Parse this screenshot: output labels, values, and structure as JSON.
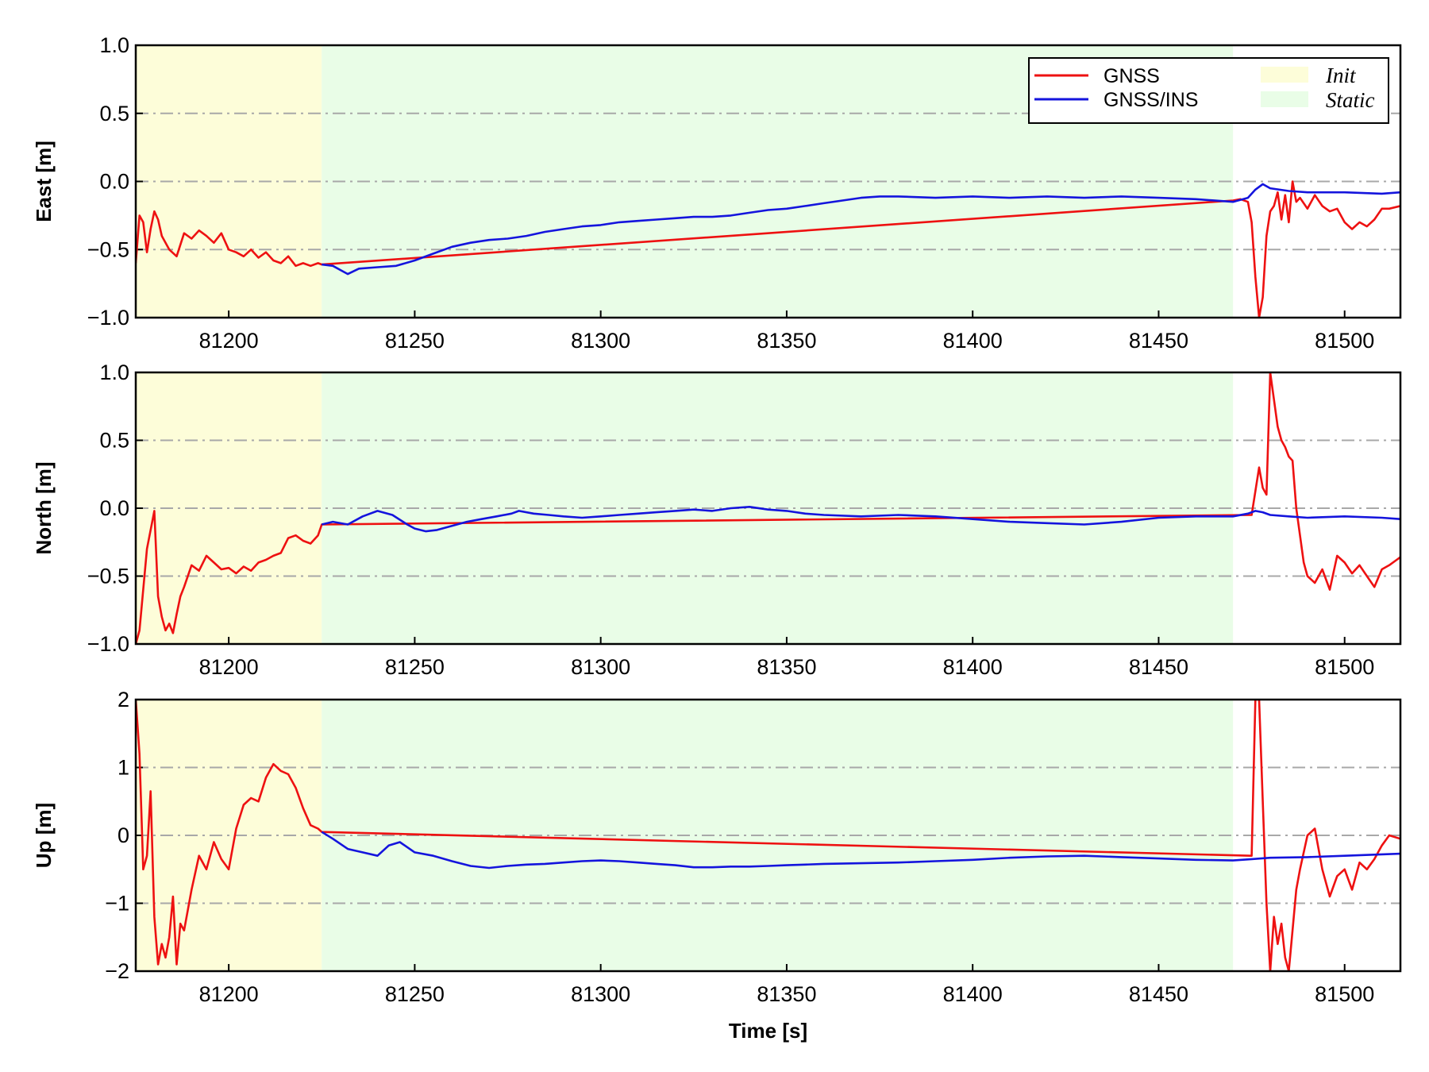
{
  "chart_data": [
    {
      "type": "line",
      "ylabel": "East [m]",
      "xlabel": "",
      "xlim": [
        81175,
        81515
      ],
      "ylim": [
        -1.0,
        1.0
      ],
      "xticks": [
        "81200",
        "81250",
        "81300",
        "81350",
        "81400",
        "81450",
        "81500"
      ],
      "yticks": [
        "−1.0",
        "−0.5",
        "0.0",
        "0.5",
        "1.0"
      ],
      "grid": "horizontal dash-dot",
      "legend": "top-right",
      "regions": [
        {
          "name": "Init",
          "x": [
            81175,
            81225
          ],
          "color": "#fdfdd9"
        },
        {
          "name": "Static",
          "x": [
            81225,
            81470
          ],
          "color": "#e9fde7"
        }
      ],
      "series": [
        {
          "name": "GNSS",
          "color": "#ee1111",
          "x": [
            81175,
            81176,
            81177,
            81178,
            81179,
            81180,
            81181,
            81182,
            81184,
            81186,
            81188,
            81190,
            81192,
            81194,
            81196,
            81198,
            81200,
            81202,
            81204,
            81206,
            81208,
            81210,
            81212,
            81214,
            81216,
            81218,
            81220,
            81222,
            81224,
            81225,
            81470,
            81472,
            81474,
            81475,
            81476,
            81477,
            81478,
            81479,
            81480,
            81481,
            81482,
            81483,
            81484,
            81485,
            81486,
            81487,
            81488,
            81490,
            81492,
            81494,
            81496,
            81498,
            81500,
            81502,
            81504,
            81506,
            81508,
            81510,
            81512,
            81515
          ],
          "y": [
            -0.6,
            -0.25,
            -0.3,
            -0.52,
            -0.35,
            -0.22,
            -0.28,
            -0.4,
            -0.5,
            -0.55,
            -0.38,
            -0.42,
            -0.36,
            -0.4,
            -0.45,
            -0.38,
            -0.5,
            -0.52,
            -0.55,
            -0.5,
            -0.56,
            -0.52,
            -0.58,
            -0.6,
            -0.55,
            -0.62,
            -0.6,
            -0.62,
            -0.6,
            -0.61,
            -0.14,
            -0.13,
            -0.15,
            -0.3,
            -0.7,
            -1.0,
            -0.85,
            -0.4,
            -0.22,
            -0.18,
            -0.08,
            -0.28,
            -0.1,
            -0.3,
            0.0,
            -0.15,
            -0.12,
            -0.2,
            -0.1,
            -0.18,
            -0.22,
            -0.2,
            -0.3,
            -0.35,
            -0.3,
            -0.33,
            -0.28,
            -0.2,
            -0.2,
            -0.18
          ]
        },
        {
          "name": "GNSS/INS",
          "color": "#1414dd",
          "x": [
            81225,
            81228,
            81230,
            81232,
            81235,
            81240,
            81245,
            81250,
            81255,
            81260,
            81265,
            81270,
            81275,
            81280,
            81285,
            81290,
            81295,
            81300,
            81305,
            81310,
            81315,
            81320,
            81325,
            81330,
            81335,
            81340,
            81345,
            81350,
            81355,
            81360,
            81365,
            81370,
            81375,
            81380,
            81390,
            81400,
            81410,
            81420,
            81430,
            81440,
            81450,
            81460,
            81470,
            81474,
            81476,
            81478,
            81480,
            81485,
            81490,
            81500,
            81510,
            81515
          ],
          "y": [
            -0.61,
            -0.62,
            -0.65,
            -0.68,
            -0.64,
            -0.63,
            -0.62,
            -0.58,
            -0.53,
            -0.48,
            -0.45,
            -0.43,
            -0.42,
            -0.4,
            -0.37,
            -0.35,
            -0.33,
            -0.32,
            -0.3,
            -0.29,
            -0.28,
            -0.27,
            -0.26,
            -0.26,
            -0.25,
            -0.23,
            -0.21,
            -0.2,
            -0.18,
            -0.16,
            -0.14,
            -0.12,
            -0.11,
            -0.11,
            -0.12,
            -0.11,
            -0.12,
            -0.11,
            -0.12,
            -0.11,
            -0.12,
            -0.13,
            -0.15,
            -0.12,
            -0.06,
            -0.02,
            -0.05,
            -0.07,
            -0.08,
            -0.08,
            -0.09,
            -0.08
          ]
        }
      ]
    },
    {
      "type": "line",
      "ylabel": "North [m]",
      "xlabel": "",
      "xlim": [
        81175,
        81515
      ],
      "ylim": [
        -1.0,
        1.0
      ],
      "xticks": [
        "81200",
        "81250",
        "81300",
        "81350",
        "81400",
        "81450",
        "81500"
      ],
      "yticks": [
        "−1.0",
        "−0.5",
        "0.0",
        "0.5",
        "1.0"
      ],
      "grid": "horizontal dash-dot",
      "regions": [
        {
          "name": "Init",
          "x": [
            81175,
            81225
          ],
          "color": "#fdfdd9"
        },
        {
          "name": "Static",
          "x": [
            81225,
            81470
          ],
          "color": "#e9fde7"
        }
      ],
      "series": [
        {
          "name": "GNSS",
          "color": "#ee1111",
          "x": [
            81175,
            81176,
            81178,
            81180,
            81181,
            81182,
            81183,
            81184,
            81185,
            81186,
            81187,
            81188,
            81190,
            81192,
            81194,
            81196,
            81198,
            81200,
            81202,
            81204,
            81206,
            81208,
            81210,
            81212,
            81214,
            81216,
            81218,
            81220,
            81222,
            81224,
            81225,
            81475,
            81477,
            81478,
            81479,
            81480,
            81481,
            81482,
            81483,
            81484,
            81485,
            81486,
            81487,
            81488,
            81489,
            81490,
            81492,
            81494,
            81496,
            81498,
            81500,
            81502,
            81504,
            81506,
            81508,
            81510,
            81512,
            81514,
            81515
          ],
          "y": [
            -1.0,
            -0.9,
            -0.3,
            -0.02,
            -0.65,
            -0.8,
            -0.9,
            -0.85,
            -0.92,
            -0.78,
            -0.65,
            -0.58,
            -0.42,
            -0.46,
            -0.35,
            -0.4,
            -0.45,
            -0.44,
            -0.48,
            -0.43,
            -0.46,
            -0.4,
            -0.38,
            -0.35,
            -0.33,
            -0.22,
            -0.2,
            -0.24,
            -0.26,
            -0.2,
            -0.12,
            -0.05,
            0.3,
            0.15,
            0.1,
            1.0,
            0.8,
            0.6,
            0.5,
            0.45,
            0.38,
            0.35,
            0.0,
            -0.2,
            -0.4,
            -0.5,
            -0.55,
            -0.45,
            -0.6,
            -0.35,
            -0.4,
            -0.48,
            -0.42,
            -0.5,
            -0.58,
            -0.45,
            -0.42,
            -0.38,
            -0.36
          ]
        },
        {
          "name": "GNSS/INS",
          "color": "#1414dd",
          "x": [
            81225,
            81228,
            81232,
            81236,
            81240,
            81244,
            81248,
            81250,
            81253,
            81256,
            81260,
            81264,
            81268,
            81272,
            81276,
            81278,
            81282,
            81286,
            81290,
            81295,
            81300,
            81305,
            81310,
            81315,
            81320,
            81325,
            81330,
            81335,
            81340,
            81345,
            81350,
            81355,
            81360,
            81370,
            81380,
            81390,
            81400,
            81410,
            81420,
            81430,
            81440,
            81450,
            81460,
            81470,
            81474,
            81476,
            81478,
            81480,
            81485,
            81490,
            81500,
            81510,
            81515
          ],
          "y": [
            -0.12,
            -0.1,
            -0.12,
            -0.06,
            -0.02,
            -0.05,
            -0.12,
            -0.15,
            -0.17,
            -0.16,
            -0.13,
            -0.1,
            -0.08,
            -0.06,
            -0.04,
            -0.02,
            -0.04,
            -0.05,
            -0.06,
            -0.07,
            -0.06,
            -0.05,
            -0.04,
            -0.03,
            -0.02,
            -0.01,
            -0.02,
            0.0,
            0.01,
            -0.01,
            -0.02,
            -0.04,
            -0.05,
            -0.06,
            -0.05,
            -0.06,
            -0.08,
            -0.1,
            -0.11,
            -0.12,
            -0.1,
            -0.07,
            -0.06,
            -0.06,
            -0.04,
            -0.02,
            -0.03,
            -0.05,
            -0.06,
            -0.07,
            -0.06,
            -0.07,
            -0.08
          ]
        }
      ]
    },
    {
      "type": "line",
      "ylabel": "Up [m]",
      "xlabel": "Time [s]",
      "xlim": [
        81175,
        81515
      ],
      "ylim": [
        -2,
        2
      ],
      "xticks": [
        "81200",
        "81250",
        "81300",
        "81350",
        "81400",
        "81450",
        "81500"
      ],
      "yticks": [
        "−2",
        "−1",
        "0",
        "1",
        "2"
      ],
      "grid": "horizontal dash-dot",
      "regions": [
        {
          "name": "Init",
          "x": [
            81175,
            81225
          ],
          "color": "#fdfdd9"
        },
        {
          "name": "Static",
          "x": [
            81225,
            81470
          ],
          "color": "#e9fde7"
        }
      ],
      "series": [
        {
          "name": "GNSS",
          "color": "#ee1111",
          "x": [
            81175,
            81176,
            81177,
            81178,
            81179,
            81180,
            81181,
            81182,
            81183,
            81184,
            81185,
            81186,
            81187,
            81188,
            81189,
            81190,
            81192,
            81194,
            81196,
            81198,
            81200,
            81202,
            81204,
            81206,
            81208,
            81210,
            81212,
            81214,
            81216,
            81218,
            81220,
            81222,
            81224,
            81225,
            81475,
            81476,
            81477,
            81478,
            81479,
            81480,
            81481,
            81482,
            81483,
            81484,
            81485,
            81486,
            81487,
            81488,
            81490,
            81492,
            81494,
            81496,
            81498,
            81500,
            81502,
            81504,
            81506,
            81508,
            81510,
            81512,
            81515
          ],
          "y": [
            2.0,
            1.2,
            -0.5,
            -0.3,
            0.65,
            -1.2,
            -1.9,
            -1.6,
            -1.8,
            -1.5,
            -0.9,
            -1.9,
            -1.3,
            -1.4,
            -1.1,
            -0.8,
            -0.3,
            -0.5,
            -0.1,
            -0.35,
            -0.5,
            0.1,
            0.45,
            0.55,
            0.5,
            0.85,
            1.05,
            0.95,
            0.9,
            0.7,
            0.4,
            0.15,
            0.1,
            0.05,
            -0.3,
            2.0,
            2.0,
            0.5,
            -1.0,
            -2.0,
            -1.2,
            -1.6,
            -1.3,
            -1.8,
            -2.0,
            -1.4,
            -0.8,
            -0.5,
            0.0,
            0.1,
            -0.5,
            -0.9,
            -0.6,
            -0.5,
            -0.8,
            -0.4,
            -0.5,
            -0.35,
            -0.15,
            0.0,
            -0.05
          ]
        },
        {
          "name": "GNSS/INS",
          "color": "#1414dd",
          "x": [
            81225,
            81228,
            81232,
            81236,
            81240,
            81243,
            81246,
            81250,
            81255,
            81260,
            81265,
            81270,
            81275,
            81280,
            81285,
            81290,
            81295,
            81300,
            81305,
            81310,
            81315,
            81320,
            81325,
            81330,
            81335,
            81340,
            81345,
            81350,
            81355,
            81360,
            81370,
            81380,
            81390,
            81400,
            81410,
            81420,
            81430,
            81440,
            81450,
            81460,
            81470,
            81475,
            81480,
            81490,
            81500,
            81510,
            81515
          ],
          "y": [
            0.05,
            -0.05,
            -0.2,
            -0.25,
            -0.3,
            -0.15,
            -0.1,
            -0.25,
            -0.3,
            -0.38,
            -0.45,
            -0.48,
            -0.45,
            -0.43,
            -0.42,
            -0.4,
            -0.38,
            -0.37,
            -0.38,
            -0.4,
            -0.42,
            -0.44,
            -0.47,
            -0.47,
            -0.46,
            -0.46,
            -0.45,
            -0.44,
            -0.43,
            -0.42,
            -0.41,
            -0.4,
            -0.38,
            -0.36,
            -0.33,
            -0.31,
            -0.3,
            -0.32,
            -0.34,
            -0.36,
            -0.37,
            -0.35,
            -0.33,
            -0.32,
            -0.3,
            -0.28,
            -0.27
          ]
        }
      ]
    }
  ],
  "legend": {
    "entries": [
      {
        "label": "GNSS",
        "color": "#ee1111",
        "kind": "line"
      },
      {
        "label": "GNSS/INS",
        "color": "#1414dd",
        "kind": "line"
      },
      {
        "label": "Init",
        "color": "#fdfdd9",
        "kind": "patch"
      },
      {
        "label": "Static",
        "color": "#e9fde7",
        "kind": "patch"
      }
    ]
  }
}
